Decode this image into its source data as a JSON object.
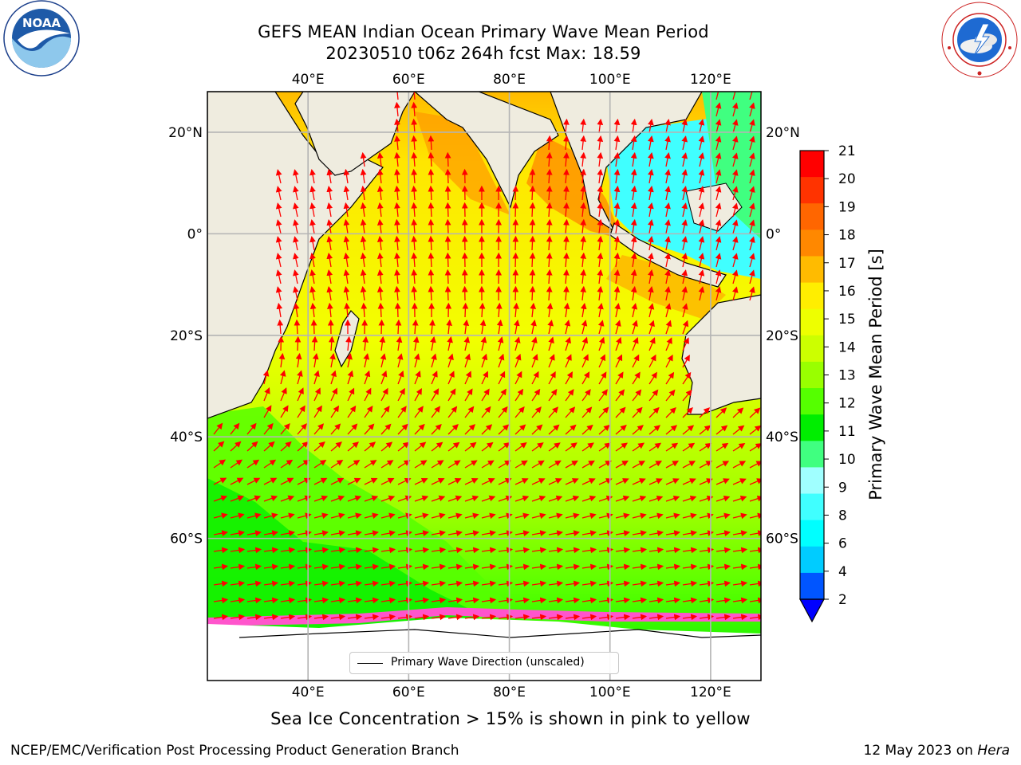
{
  "title": {
    "line1": "GEFS MEAN Indian Ocean Primary Wave Mean Period",
    "line2": "20230510 t06z 264h fcst   Max: 18.59"
  },
  "logos": {
    "left": "noaa-logo",
    "left_text": "NOAA",
    "right": "nws-logo",
    "right_text": "NATIONAL WEATHER SERVICE"
  },
  "map": {
    "projection": "Plate Carree",
    "lon_range": [
      20,
      130
    ],
    "lat_range": [
      -88,
      28
    ],
    "lon_ticks": [
      "40°E",
      "60°E",
      "80°E",
      "100°E",
      "120°E"
    ],
    "lat_ticks": [
      "20°N",
      "0°",
      "20°S",
      "40°S",
      "60°S"
    ],
    "land_color": "#efecdf",
    "sea_ice_color": "#ffffff",
    "grid": true,
    "legend_text": "Primary Wave Direction (unscaled)",
    "arrow_color": "#ff0000"
  },
  "colorbar": {
    "label": "Primary Wave Mean Period [s]",
    "ticks": [
      "2",
      "4",
      "6",
      "8",
      "9",
      "10",
      "11",
      "12",
      "13",
      "14",
      "15",
      "16",
      "17",
      "18",
      "19",
      "20",
      "21"
    ],
    "colors": [
      "#0055ff",
      "#00ccff",
      "#00ffff",
      "#40ffff",
      "#a0ffff",
      "#40ff80",
      "#00ee00",
      "#55ff00",
      "#99ff00",
      "#ccff00",
      "#eeff00",
      "#ffee00",
      "#ffbb00",
      "#ff8800",
      "#ff6600",
      "#ff3300",
      "#ff0000"
    ],
    "extend_color": "#0000ff"
  },
  "footer": {
    "note": "Sea Ice Concentration > 15% is shown in pink to yellow",
    "left": "NCEP/EMC/Verification Post Processing Product Generation Branch",
    "right_prefix": "12 May 2023 on ",
    "right_host": "Hera"
  }
}
